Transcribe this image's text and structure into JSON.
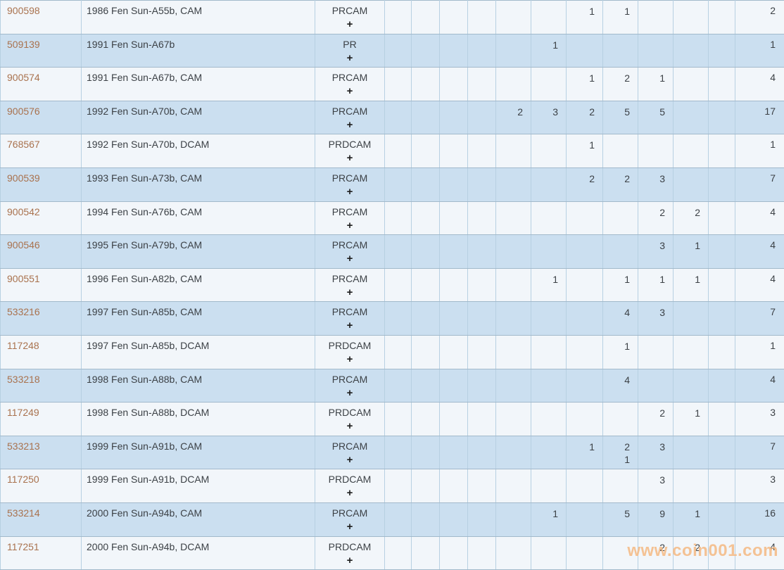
{
  "colors": {
    "row_plain": "#f2f6fa",
    "row_shaded": "#cbdff0",
    "border_v": "#b7d0e2",
    "border_h": "#a2b9cb",
    "id_text": "#a9724e",
    "body_text": "#3c4146",
    "plus_text": "#1d1d1d",
    "watermark_text": "#f5bd89"
  },
  "watermark": {
    "text": "www.coin001.com"
  },
  "table": {
    "expand_symbol": "+",
    "rows": [
      {
        "id": "900598",
        "desc": "1986 Fen Sun-A55b, CAM",
        "cat": "PRCAM",
        "shaded": false,
        "cells": [
          "",
          "",
          "",
          "",
          "",
          "",
          "1",
          "1",
          "",
          "",
          ""
        ],
        "total": "2"
      },
      {
        "id": "509139",
        "desc": "1991 Fen Sun-A67b",
        "cat": "PR",
        "shaded": true,
        "cells": [
          "",
          "",
          "",
          "",
          "",
          "1",
          "",
          "",
          "",
          "",
          ""
        ],
        "total": "1"
      },
      {
        "id": "900574",
        "desc": "1991 Fen Sun-A67b, CAM",
        "cat": "PRCAM",
        "shaded": false,
        "cells": [
          "",
          "",
          "",
          "",
          "",
          "",
          "1",
          "2",
          "1",
          "",
          ""
        ],
        "total": "4"
      },
      {
        "id": "900576",
        "desc": "1992 Fen Sun-A70b, CAM",
        "cat": "PRCAM",
        "shaded": true,
        "cells": [
          "",
          "",
          "",
          "",
          "2",
          "3",
          "2",
          "5",
          "5",
          "",
          ""
        ],
        "total": "17"
      },
      {
        "id": "768567",
        "desc": "1992 Fen Sun-A70b, DCAM",
        "cat": "PRDCAM",
        "shaded": false,
        "cells": [
          "",
          "",
          "",
          "",
          "",
          "",
          "1",
          "",
          "",
          "",
          ""
        ],
        "total": "1"
      },
      {
        "id": "900539",
        "desc": "1993 Fen Sun-A73b, CAM",
        "cat": "PRCAM",
        "shaded": true,
        "cells": [
          "",
          "",
          "",
          "",
          "",
          "",
          "2",
          "2",
          "3",
          "",
          ""
        ],
        "total": "7"
      },
      {
        "id": "900542",
        "desc": "1994 Fen Sun-A76b, CAM",
        "cat": "PRCAM",
        "shaded": false,
        "cells": [
          "",
          "",
          "",
          "",
          "",
          "",
          "",
          "",
          "2",
          "2",
          ""
        ],
        "total": "4"
      },
      {
        "id": "900546",
        "desc": "1995 Fen Sun-A79b, CAM",
        "cat": "PRCAM",
        "shaded": true,
        "cells": [
          "",
          "",
          "",
          "",
          "",
          "",
          "",
          "",
          "3",
          "1",
          ""
        ],
        "total": "4"
      },
      {
        "id": "900551",
        "desc": "1996 Fen Sun-A82b, CAM",
        "cat": "PRCAM",
        "shaded": false,
        "cells": [
          "",
          "",
          "",
          "",
          "",
          "1",
          "",
          "1",
          "1",
          "1",
          ""
        ],
        "total": "4"
      },
      {
        "id": "533216",
        "desc": "1997 Fen Sun-A85b, CAM",
        "cat": "PRCAM",
        "shaded": true,
        "cells": [
          "",
          "",
          "",
          "",
          "",
          "",
          "",
          "4",
          "3",
          "",
          ""
        ],
        "total": "7"
      },
      {
        "id": "117248",
        "desc": "1997 Fen Sun-A85b, DCAM",
        "cat": "PRDCAM",
        "shaded": false,
        "cells": [
          "",
          "",
          "",
          "",
          "",
          "",
          "",
          "1",
          "",
          "",
          ""
        ],
        "total": "1"
      },
      {
        "id": "533218",
        "desc": "1998 Fen Sun-A88b, CAM",
        "cat": "PRCAM",
        "shaded": true,
        "cells": [
          "",
          "",
          "",
          "",
          "",
          "",
          "",
          "4",
          "",
          "",
          ""
        ],
        "total": "4"
      },
      {
        "id": "117249",
        "desc": "1998 Fen Sun-A88b, DCAM",
        "cat": "PRDCAM",
        "shaded": false,
        "cells": [
          "",
          "",
          "",
          "",
          "",
          "",
          "",
          "",
          "2",
          "1",
          ""
        ],
        "total": "3"
      },
      {
        "id": "533213",
        "desc": "1999 Fen Sun-A91b, CAM",
        "cat": "PRCAM",
        "shaded": true,
        "cells": [
          "",
          "",
          "",
          "",
          "",
          "",
          "1",
          "2\n1",
          "3",
          "",
          ""
        ],
        "total": "7"
      },
      {
        "id": "117250",
        "desc": "1999 Fen Sun-A91b, DCAM",
        "cat": "PRDCAM",
        "shaded": false,
        "cells": [
          "",
          "",
          "",
          "",
          "",
          "",
          "",
          "",
          "3",
          "",
          ""
        ],
        "total": "3"
      },
      {
        "id": "533214",
        "desc": "2000 Fen Sun-A94b, CAM",
        "cat": "PRCAM",
        "shaded": true,
        "cells": [
          "",
          "",
          "",
          "",
          "",
          "1",
          "",
          "5",
          "9",
          "1",
          ""
        ],
        "total": "16"
      },
      {
        "id": "117251",
        "desc": "2000 Fen Sun-A94b, DCAM",
        "cat": "PRDCAM",
        "shaded": false,
        "cells": [
          "",
          "",
          "",
          "",
          "",
          "",
          "",
          "",
          "2",
          "2",
          ""
        ],
        "total": "4"
      }
    ]
  }
}
